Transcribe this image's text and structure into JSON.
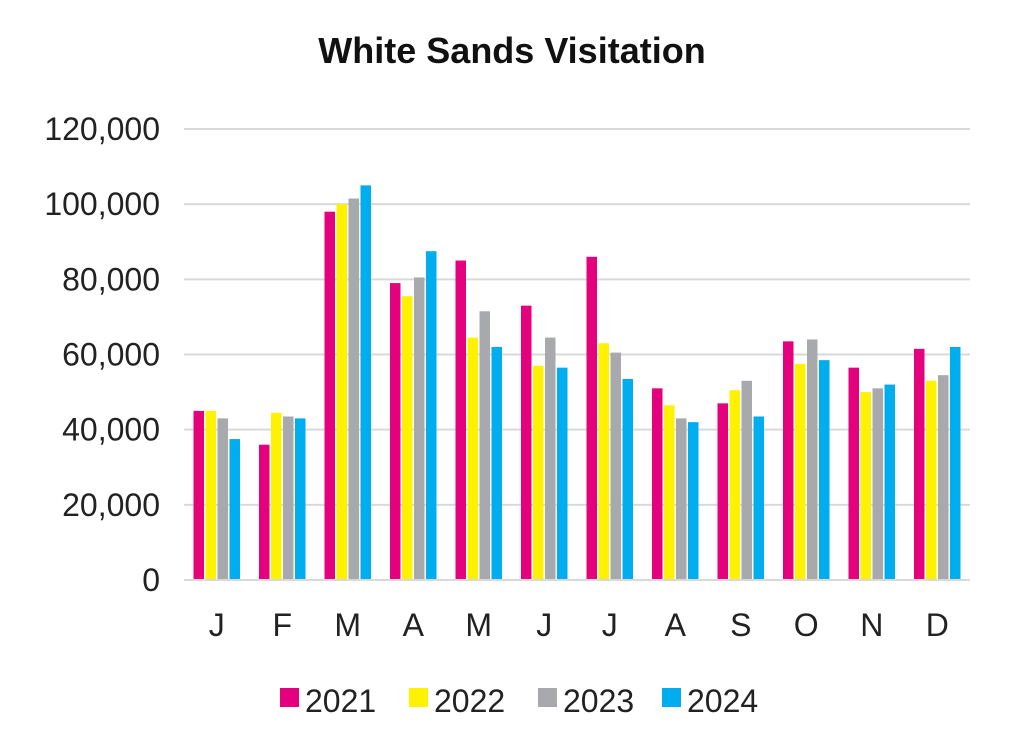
{
  "chart_data": {
    "type": "bar",
    "title": "White Sands Visitation",
    "xlabel": "",
    "ylabel": "",
    "categories": [
      "J",
      "F",
      "M",
      "A",
      "M",
      "J",
      "J",
      "A",
      "S",
      "O",
      "N",
      "D"
    ],
    "ylim": [
      0,
      120000
    ],
    "yticks": [
      0,
      20000,
      40000,
      60000,
      80000,
      100000,
      120000
    ],
    "ytick_labels": [
      "0",
      "20,000",
      "40,000",
      "60,000",
      "80,000",
      "100,000",
      "120,000"
    ],
    "grid": true,
    "legend_position": "bottom",
    "series": [
      {
        "name": "2021",
        "color": "#E5007E",
        "values": [
          45000,
          36000,
          98000,
          79000,
          85000,
          73000,
          86000,
          51000,
          47000,
          63500,
          56500,
          61500
        ]
      },
      {
        "name": "2022",
        "color": "#FFF200",
        "values": [
          45000,
          44500,
          100000,
          75500,
          64500,
          57000,
          63000,
          46500,
          50500,
          57500,
          50000,
          53000
        ]
      },
      {
        "name": "2023",
        "color": "#A7A9AC",
        "values": [
          43000,
          43500,
          101500,
          80500,
          71500,
          64500,
          60500,
          43000,
          53000,
          64000,
          51000,
          54500
        ]
      },
      {
        "name": "2024",
        "color": "#00AEEF",
        "values": [
          37500,
          43000,
          105000,
          87500,
          62000,
          56500,
          53500,
          42000,
          43500,
          58500,
          52000,
          62000
        ]
      }
    ]
  }
}
